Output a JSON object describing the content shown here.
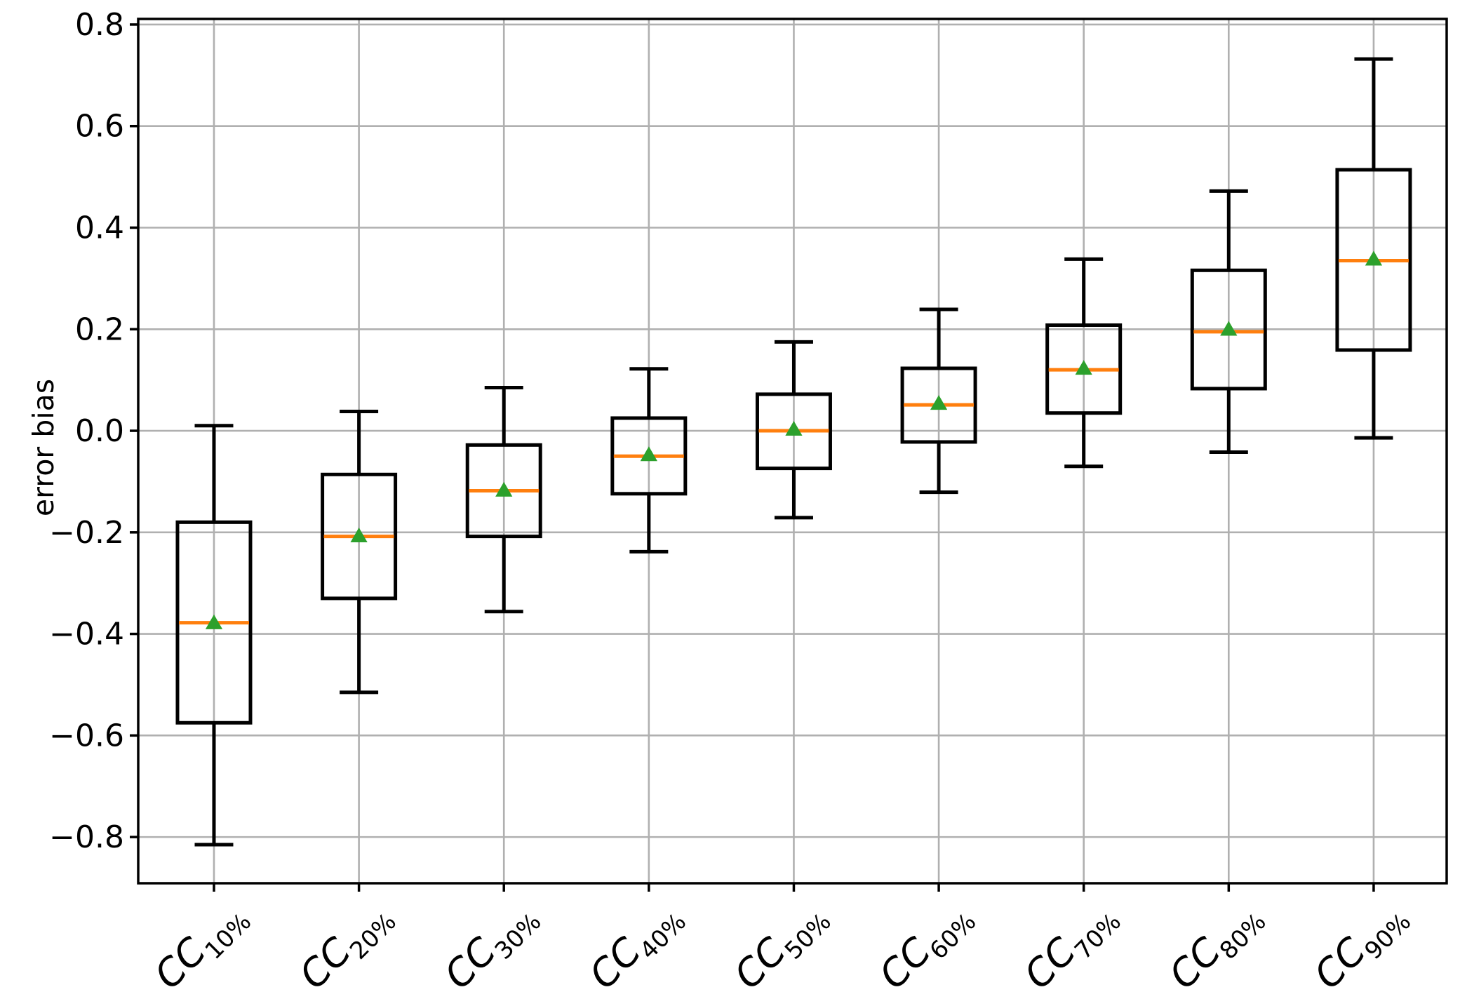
{
  "chart_data": {
    "type": "boxplot",
    "title": "",
    "xlabel": "",
    "ylabel": "error bias",
    "ylim": [
      -0.891,
      0.811
    ],
    "grid": true,
    "legend": false,
    "y_ticks": [
      {
        "value": 0.8,
        "label": "0.8"
      },
      {
        "value": 0.6,
        "label": "0.6"
      },
      {
        "value": 0.4,
        "label": "0.4"
      },
      {
        "value": 0.2,
        "label": "0.2"
      },
      {
        "value": 0.0,
        "label": "0.0"
      },
      {
        "value": -0.2,
        "label": "−0.2"
      },
      {
        "value": -0.4,
        "label": "−0.4"
      },
      {
        "value": -0.6,
        "label": "−0.6"
      },
      {
        "value": -0.8,
        "label": "−0.8"
      }
    ],
    "categories": [
      "CC10%",
      "CC20%",
      "CC30%",
      "CC40%",
      "CC50%",
      "CC60%",
      "CC70%",
      "CC80%",
      "CC90%"
    ],
    "series": [
      {
        "label": "CC10%",
        "category_main": "CC",
        "category_sub": "10%",
        "whislo": -0.815,
        "q1": -0.575,
        "med": -0.378,
        "mean": -0.381,
        "q3": -0.18,
        "whishi": 0.01
      },
      {
        "label": "CC20%",
        "category_main": "CC",
        "category_sub": "20%",
        "whislo": -0.515,
        "q1": -0.33,
        "med": -0.208,
        "mean": -0.21,
        "q3": -0.086,
        "whishi": 0.038
      },
      {
        "label": "CC30%",
        "category_main": "CC",
        "category_sub": "30%",
        "whislo": -0.356,
        "q1": -0.208,
        "med": -0.118,
        "mean": -0.12,
        "q3": -0.028,
        "whishi": 0.085
      },
      {
        "label": "CC40%",
        "category_main": "CC",
        "category_sub": "40%",
        "whislo": -0.238,
        "q1": -0.124,
        "med": -0.05,
        "mean": -0.05,
        "q3": 0.025,
        "whishi": 0.122
      },
      {
        "label": "CC50%",
        "category_main": "CC",
        "category_sub": "50%",
        "whislo": -0.171,
        "q1": -0.074,
        "med": 0.0,
        "mean": 0.0,
        "q3": 0.072,
        "whishi": 0.175
      },
      {
        "label": "CC60%",
        "category_main": "CC",
        "category_sub": "60%",
        "whislo": -0.121,
        "q1": -0.022,
        "med": 0.051,
        "mean": 0.051,
        "q3": 0.123,
        "whishi": 0.239
      },
      {
        "label": "CC70%",
        "category_main": "CC",
        "category_sub": "70%",
        "whislo": -0.07,
        "q1": 0.035,
        "med": 0.12,
        "mean": 0.12,
        "q3": 0.208,
        "whishi": 0.338
      },
      {
        "label": "CC80%",
        "category_main": "CC",
        "category_sub": "80%",
        "whislo": -0.042,
        "q1": 0.083,
        "med": 0.195,
        "mean": 0.197,
        "q3": 0.316,
        "whishi": 0.472
      },
      {
        "label": "CC90%",
        "category_main": "CC",
        "category_sub": "90%",
        "whislo": -0.014,
        "q1": 0.159,
        "med": 0.335,
        "mean": 0.335,
        "q3": 0.514,
        "whishi": 0.732
      }
    ],
    "colors": {
      "box": "#000000",
      "median": "#ff7f0e",
      "mean_marker": "#2ca02c",
      "grid": "#b0b0b0",
      "background": "#ffffff",
      "text": "#000000"
    }
  }
}
